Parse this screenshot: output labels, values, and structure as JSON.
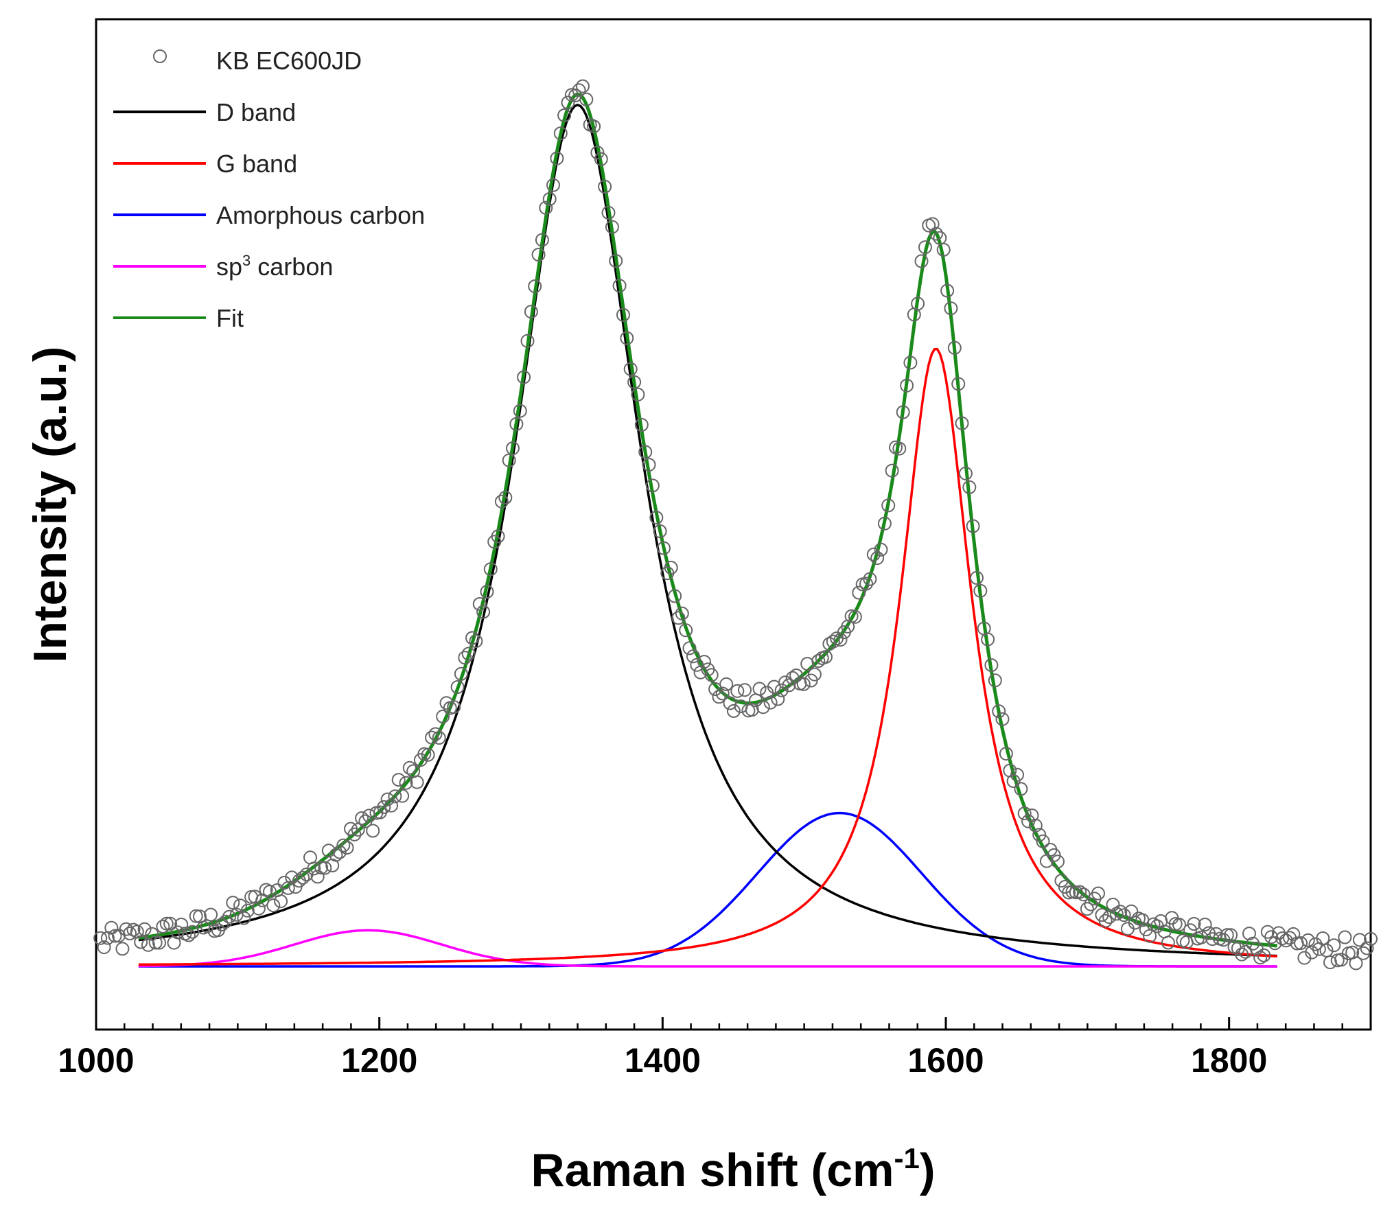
{
  "chart_data": {
    "type": "line",
    "title": "",
    "xlabel": "Raman shift (cm",
    "xlabel_sup": "-1",
    "xlabel_suffix": ")",
    "ylabel": "Intensity (a.u.)",
    "xlim": [
      1000,
      1900
    ],
    "ylim": [
      -0.07,
      1.05
    ],
    "y_ticks_shown": false,
    "grid": false,
    "legend_position": "top-left",
    "x_ticks": [
      "1000",
      "1200",
      "1400",
      "1600",
      "1800"
    ],
    "x_tick_values": [
      1000,
      1200,
      1400,
      1600,
      1800
    ],
    "x_minor_step": 20,
    "series": [
      {
        "name": "KB EC600JD",
        "kind": "scatter",
        "color": "#666666"
      },
      {
        "name": "D band",
        "kind": "line",
        "color": "#000000",
        "range": [
          1030,
          1835
        ],
        "model": {
          "shape": "lorentzian",
          "center": 1340,
          "amplitude": 0.955,
          "hwhm": 55
        }
      },
      {
        "name": "G band",
        "kind": "line",
        "color": "#ff0000",
        "range": [
          1030,
          1835
        ],
        "model": {
          "shape": "lorentzian",
          "center": 1593,
          "amplitude": 0.685,
          "hwhm": 31
        }
      },
      {
        "name": "Amorphous carbon",
        "kind": "line",
        "color": "#0000ff",
        "range": [
          1030,
          1835
        ],
        "model": {
          "shape": "gaussian",
          "center": 1525,
          "amplitude": 0.17,
          "sigma": 58
        }
      },
      {
        "name": "sp",
        "name_sup": "3",
        "name_suffix": " carbon",
        "kind": "line",
        "color": "#ff00ff",
        "range": [
          1030,
          1835
        ],
        "model": {
          "shape": "gaussian",
          "center": 1192,
          "amplitude": 0.04,
          "sigma": 52
        }
      },
      {
        "name": "Fit",
        "kind": "line",
        "color": "#1a8a1a",
        "range": [
          1030,
          1835
        ],
        "model": {
          "shape": "sum"
        }
      }
    ],
    "scatter_range": [
      1003,
      1900
    ],
    "scatter_step": 2.6
  }
}
